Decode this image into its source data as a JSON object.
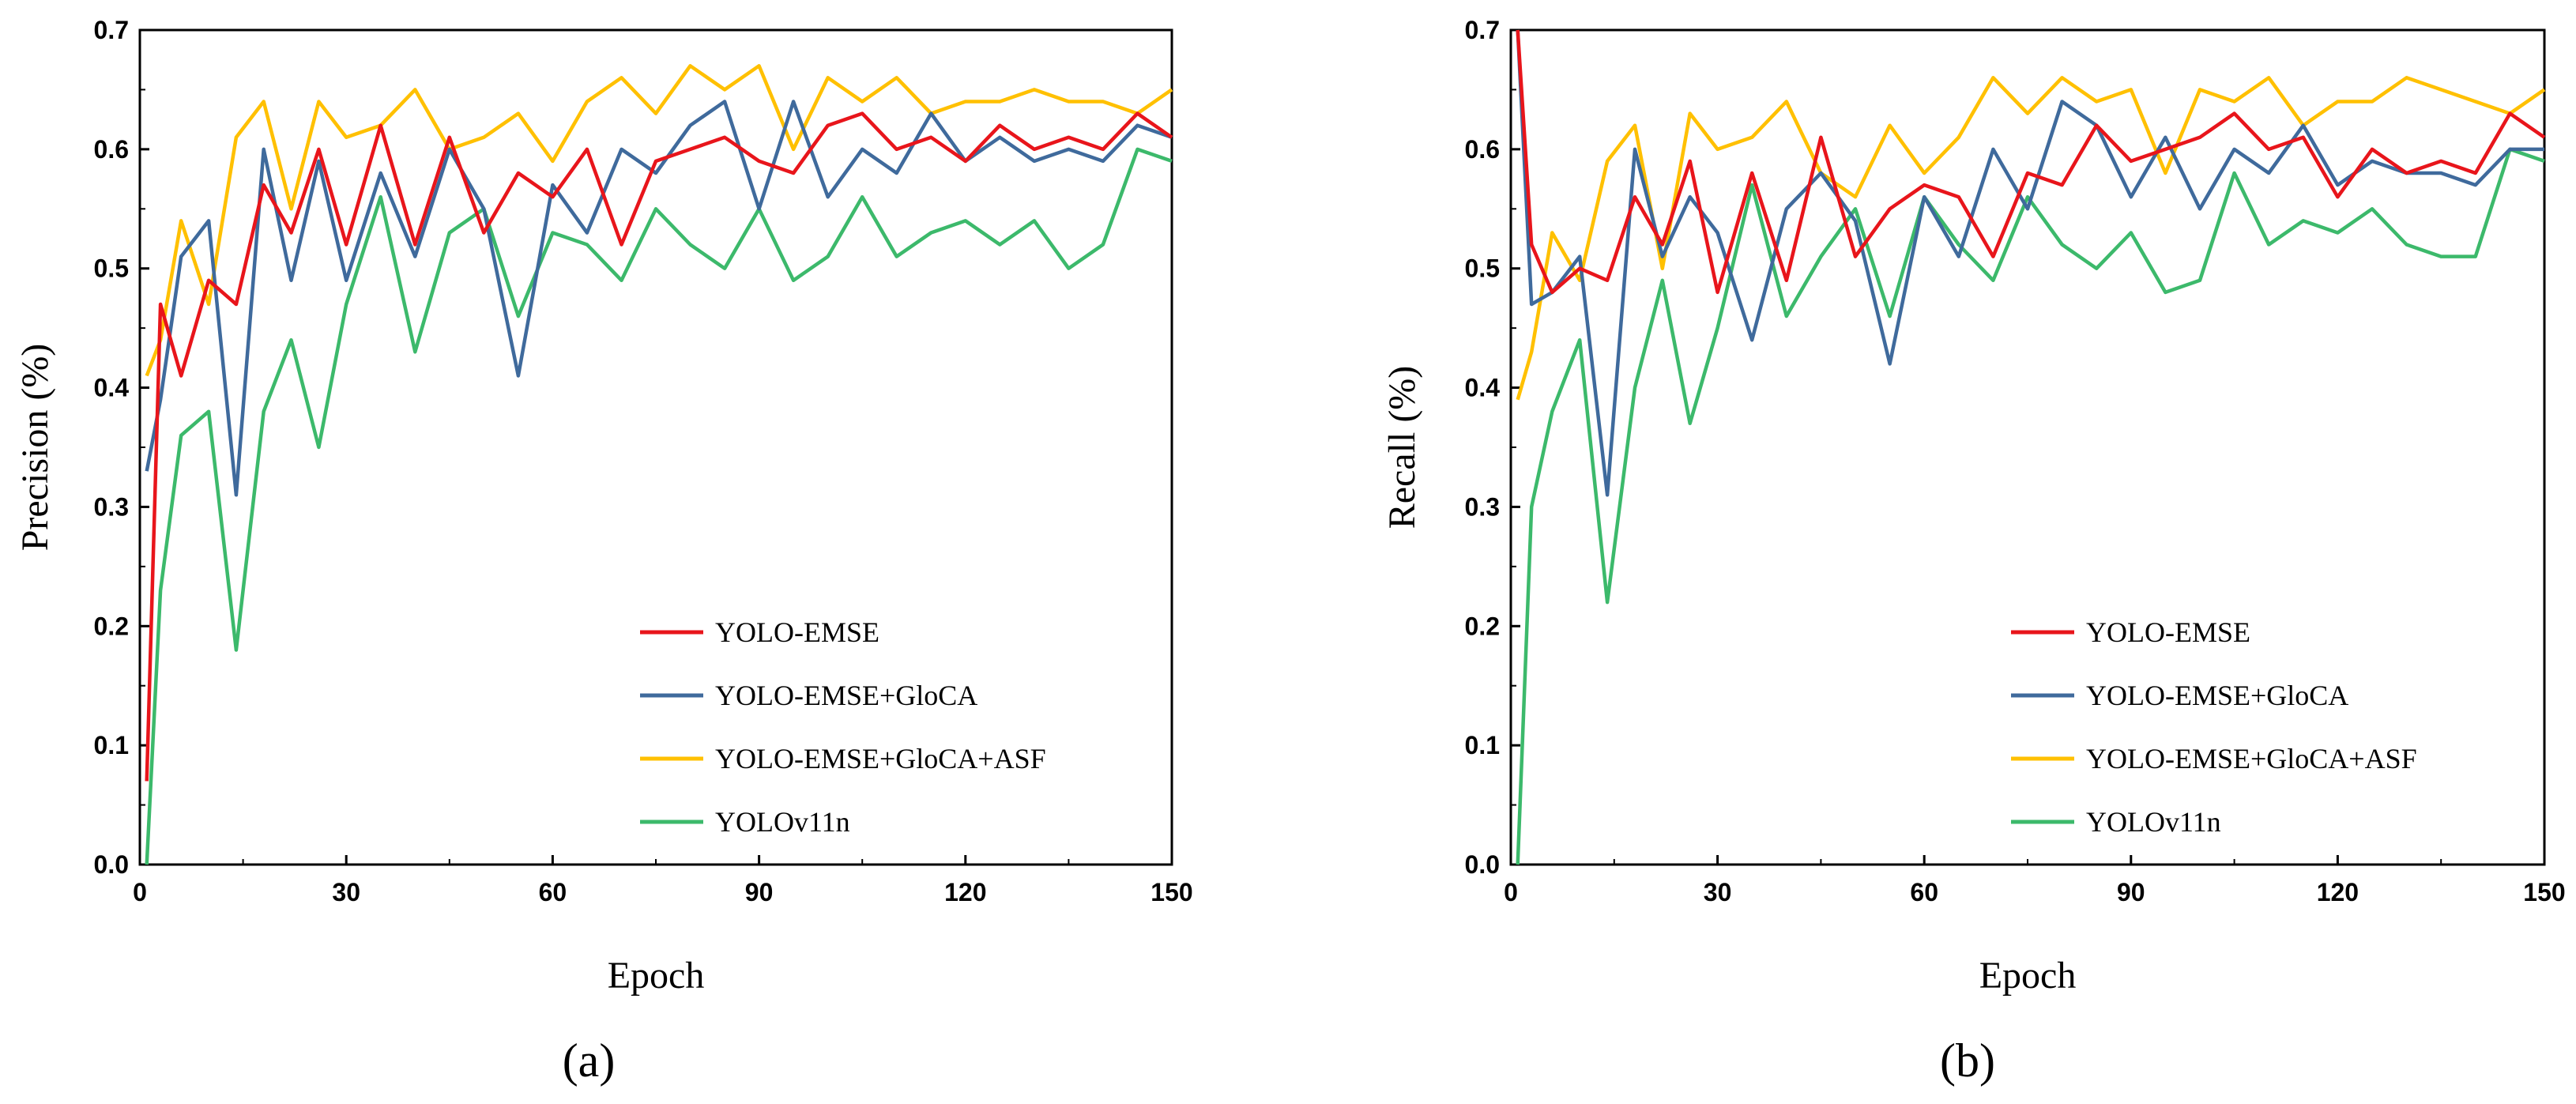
{
  "figure": {
    "panel_labels": [
      "(a)",
      "(b)"
    ]
  },
  "chart_data": [
    {
      "type": "line",
      "title": "",
      "xlabel": "Epoch",
      "ylabel": "Precision (%)",
      "xlim": [
        0,
        150
      ],
      "ylim": [
        0.0,
        0.7
      ],
      "xticks": [
        "0",
        "30",
        "60",
        "90",
        "120",
        "150"
      ],
      "yticks": [
        "0.0",
        "0.1",
        "0.2",
        "0.3",
        "0.4",
        "0.5",
        "0.6",
        "0.7"
      ],
      "legend_position": "bottom-right",
      "x": [
        1,
        3,
        6,
        10,
        14,
        18,
        22,
        26,
        30,
        35,
        40,
        45,
        50,
        55,
        60,
        65,
        70,
        75,
        80,
        85,
        90,
        95,
        100,
        105,
        110,
        115,
        120,
        125,
        130,
        135,
        140,
        145,
        150
      ],
      "series": [
        {
          "name": "YOLO-EMSE",
          "color": "#e8151b",
          "values": [
            0.07,
            0.47,
            0.41,
            0.49,
            0.47,
            0.57,
            0.53,
            0.6,
            0.52,
            0.62,
            0.52,
            0.61,
            0.53,
            0.58,
            0.56,
            0.6,
            0.52,
            0.59,
            0.6,
            0.61,
            0.59,
            0.58,
            0.62,
            0.63,
            0.6,
            0.61,
            0.59,
            0.62,
            0.6,
            0.61,
            0.6,
            0.63,
            0.61
          ]
        },
        {
          "name": "YOLO-EMSE+GloCA",
          "color": "#3f6a9c",
          "values": [
            0.33,
            0.39,
            0.51,
            0.54,
            0.31,
            0.6,
            0.49,
            0.59,
            0.49,
            0.58,
            0.51,
            0.6,
            0.55,
            0.41,
            0.57,
            0.53,
            0.6,
            0.58,
            0.62,
            0.64,
            0.55,
            0.64,
            0.56,
            0.6,
            0.58,
            0.63,
            0.59,
            0.61,
            0.59,
            0.6,
            0.59,
            0.62,
            0.61
          ]
        },
        {
          "name": "YOLO-EMSE+GloCA+ASF",
          "color": "#ffc000",
          "values": [
            0.41,
            0.44,
            0.54,
            0.47,
            0.61,
            0.64,
            0.55,
            0.64,
            0.61,
            0.62,
            0.65,
            0.6,
            0.61,
            0.63,
            0.59,
            0.64,
            0.66,
            0.63,
            0.67,
            0.65,
            0.67,
            0.6,
            0.66,
            0.64,
            0.66,
            0.63,
            0.64,
            0.64,
            0.65,
            0.64,
            0.64,
            0.63,
            0.65
          ]
        },
        {
          "name": "YOLOv11n",
          "color": "#3cb96b",
          "values": [
            0.0,
            0.23,
            0.36,
            0.38,
            0.18,
            0.38,
            0.44,
            0.35,
            0.47,
            0.56,
            0.43,
            0.53,
            0.55,
            0.46,
            0.53,
            0.52,
            0.49,
            0.55,
            0.52,
            0.5,
            0.55,
            0.49,
            0.51,
            0.56,
            0.51,
            0.53,
            0.54,
            0.52,
            0.54,
            0.5,
            0.52,
            0.6,
            0.59
          ]
        }
      ]
    },
    {
      "type": "line",
      "title": "",
      "xlabel": "Epoch",
      "ylabel": "Recall (%)",
      "xlim": [
        0,
        150
      ],
      "ylim": [
        0.0,
        0.7
      ],
      "xticks": [
        "0",
        "30",
        "60",
        "90",
        "120",
        "150"
      ],
      "yticks": [
        "0.0",
        "0.1",
        "0.2",
        "0.3",
        "0.4",
        "0.5",
        "0.6",
        "0.7"
      ],
      "legend_position": "bottom-right",
      "x": [
        1,
        3,
        6,
        10,
        14,
        18,
        22,
        26,
        30,
        35,
        40,
        45,
        50,
        55,
        60,
        65,
        70,
        75,
        80,
        85,
        90,
        95,
        100,
        105,
        110,
        115,
        120,
        125,
        130,
        135,
        140,
        145,
        150
      ],
      "series": [
        {
          "name": "YOLO-EMSE",
          "color": "#e8151b",
          "values": [
            0.7,
            0.52,
            0.48,
            0.5,
            0.49,
            0.56,
            0.52,
            0.59,
            0.48,
            0.58,
            0.49,
            0.61,
            0.51,
            0.55,
            0.57,
            0.56,
            0.51,
            0.58,
            0.57,
            0.62,
            0.59,
            0.6,
            0.61,
            0.63,
            0.6,
            0.61,
            0.56,
            0.6,
            0.58,
            0.59,
            0.58,
            0.63,
            0.61
          ]
        },
        {
          "name": "YOLO-EMSE+GloCA",
          "color": "#3f6a9c",
          "values": [
            0.7,
            0.47,
            0.48,
            0.51,
            0.31,
            0.6,
            0.51,
            0.56,
            0.53,
            0.44,
            0.55,
            0.58,
            0.54,
            0.42,
            0.56,
            0.51,
            0.6,
            0.55,
            0.64,
            0.62,
            0.56,
            0.61,
            0.55,
            0.6,
            0.58,
            0.62,
            0.57,
            0.59,
            0.58,
            0.58,
            0.57,
            0.6,
            0.6
          ]
        },
        {
          "name": "YOLO-EMSE+GloCA+ASF",
          "color": "#ffc000",
          "values": [
            0.39,
            0.43,
            0.53,
            0.49,
            0.59,
            0.62,
            0.5,
            0.63,
            0.6,
            0.61,
            0.64,
            0.58,
            0.56,
            0.62,
            0.58,
            0.61,
            0.66,
            0.63,
            0.66,
            0.64,
            0.65,
            0.58,
            0.65,
            0.64,
            0.66,
            0.62,
            0.64,
            0.64,
            0.66,
            0.65,
            0.64,
            0.63,
            0.65
          ]
        },
        {
          "name": "YOLOv11n",
          "color": "#3cb96b",
          "values": [
            0.0,
            0.3,
            0.38,
            0.44,
            0.22,
            0.4,
            0.49,
            0.37,
            0.45,
            0.57,
            0.46,
            0.51,
            0.55,
            0.46,
            0.56,
            0.52,
            0.49,
            0.56,
            0.52,
            0.5,
            0.53,
            0.48,
            0.49,
            0.58,
            0.52,
            0.54,
            0.53,
            0.55,
            0.52,
            0.51,
            0.51,
            0.6,
            0.59
          ]
        }
      ]
    }
  ]
}
